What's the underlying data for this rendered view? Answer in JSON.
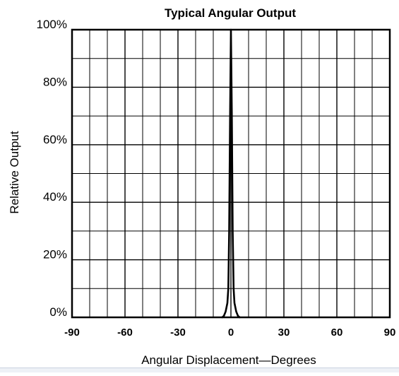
{
  "chart_data": {
    "type": "line",
    "title": "Typical Angular Output",
    "xlabel": "Angular Displacement—Degrees",
    "ylabel": "Relative Output",
    "xlim": [
      -90,
      90
    ],
    "ylim": [
      0,
      100
    ],
    "x_ticks": [
      -90,
      -60,
      -30,
      0,
      30,
      60,
      90
    ],
    "x_tick_labels": [
      "-90",
      "-60",
      "-30",
      "0",
      "30",
      "60",
      "90"
    ],
    "y_ticks": [
      0,
      20,
      40,
      60,
      80,
      100
    ],
    "y_tick_labels": [
      "0%",
      "20%",
      "40%",
      "60%",
      "80%",
      "100%"
    ],
    "grid": true,
    "grid_minor_x_step": 10,
    "grid_minor_y_step": 10,
    "series": [
      {
        "x": [
          -5,
          -4,
          -3,
          -2,
          -1.5,
          -1,
          -0.5,
          0,
          0.5,
          1,
          1.5,
          2,
          3,
          4,
          5
        ],
        "y": [
          0,
          0.5,
          2,
          5,
          10,
          30,
          70,
          100,
          70,
          30,
          10,
          5,
          2,
          0.5,
          0
        ]
      }
    ],
    "colors": {
      "line": "#000000",
      "grid": "#000000",
      "background": "#ffffff"
    }
  }
}
